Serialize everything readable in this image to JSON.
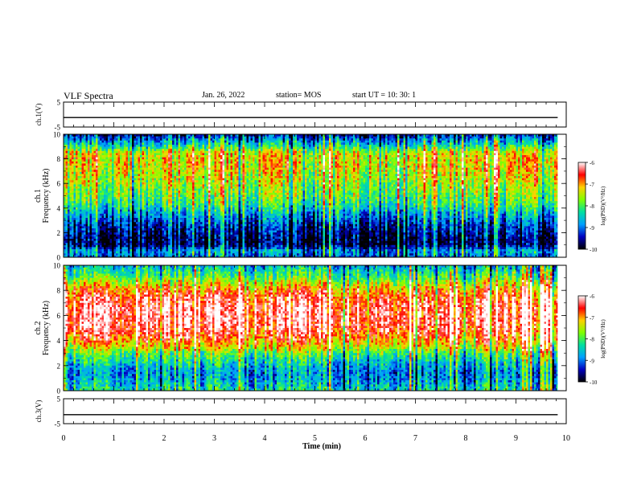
{
  "header": {
    "title": "VLF Spectra",
    "date": "Jan. 26, 2022",
    "station": "station= MOS",
    "start_ut": "start  UT =   10: 30: 1"
  },
  "colorbar": {
    "label": "log(PSD)(V²/Hz)",
    "ticks": [
      "-6",
      "-7",
      "-8",
      "-9",
      "-10"
    ],
    "stops": [
      "#ffffff",
      "#ff0000",
      "#ffd000",
      "#80ff00",
      "#00e0a0",
      "#00a0ff",
      "#0000c0",
      "#000000"
    ]
  },
  "chart_data": [
    {
      "type": "line",
      "panel": "ch1-voltage",
      "ylabel": "ch.1(V)",
      "ylim": [
        -5,
        5
      ],
      "yticks": [
        "5",
        "-5"
      ],
      "x": [
        0,
        1,
        2,
        3,
        4,
        5,
        6,
        7,
        8,
        9,
        9.83
      ],
      "y": [
        -1.2,
        -1.2,
        -1.2,
        -1.2,
        -1.2,
        -1.2,
        -1.2,
        -1.2,
        -1.2,
        -1.2,
        -1.2
      ]
    },
    {
      "type": "heatmap",
      "panel": "ch1-spectrogram",
      "ylabel": "ch.1",
      "ylabel2": "Frequency (kHz)",
      "ylim": [
        0,
        10
      ],
      "yticks": [
        "0",
        "2",
        "4",
        "6",
        "8",
        "10"
      ],
      "xlim": [
        0,
        10
      ],
      "data_end_min": 9.83,
      "z_units": "log(PSD)(V²/Hz)",
      "zlim": [
        -10,
        -6
      ],
      "freq_khz": [
        0.0,
        0.5,
        1.0,
        1.5,
        2.0,
        2.5,
        3.0,
        3.5,
        4.0,
        4.5,
        5.0,
        5.5,
        6.0,
        6.5,
        7.0,
        7.5,
        8.0,
        8.5,
        9.0,
        9.5,
        10.0
      ],
      "mean_log_psd": [
        -9.2,
        -8.8,
        -9.8,
        -9.8,
        -9.6,
        -9.4,
        -9.1,
        -8.8,
        -8.4,
        -8.1,
        -7.9,
        -7.8,
        -7.6,
        -7.5,
        -7.4,
        -7.3,
        -7.3,
        -7.4,
        -8.3,
        -8.9,
        -9.6
      ]
    },
    {
      "type": "heatmap",
      "panel": "ch2-spectrogram",
      "ylabel": "ch.2",
      "ylabel2": "Frequency (kHz)",
      "ylim": [
        0,
        10
      ],
      "yticks": [
        "0",
        "2",
        "4",
        "6",
        "8",
        "10"
      ],
      "xlim": [
        0,
        10
      ],
      "data_end_min": 9.83,
      "z_units": "log(PSD)(V²/Hz)",
      "zlim": [
        -10,
        -6
      ],
      "freq_khz": [
        0.0,
        0.5,
        1.0,
        1.5,
        2.0,
        2.5,
        3.0,
        3.5,
        4.0,
        4.5,
        5.0,
        5.5,
        6.0,
        6.5,
        7.0,
        7.5,
        8.0,
        8.5,
        9.0,
        9.5,
        10.0
      ],
      "mean_log_psd": [
        -8.3,
        -8.6,
        -8.8,
        -8.9,
        -8.6,
        -8.3,
        -7.9,
        -7.3,
        -6.9,
        -6.6,
        -6.4,
        -6.3,
        -6.3,
        -6.3,
        -6.4,
        -6.6,
        -6.9,
        -7.4,
        -7.9,
        -8.3,
        -8.7
      ]
    },
    {
      "type": "line",
      "panel": "ch3-voltage",
      "ylabel": "ch.3(V)",
      "ylim": [
        -5,
        5
      ],
      "yticks": [
        "5",
        "-5"
      ],
      "x": [
        0,
        1,
        2,
        3,
        4,
        5,
        6,
        7,
        8,
        9,
        9.83
      ],
      "y": [
        -1.4,
        -1.4,
        -1.4,
        -1.4,
        -1.4,
        -1.4,
        -1.4,
        -1.4,
        -1.4,
        -1.4,
        -1.4
      ]
    }
  ],
  "x_axis": {
    "xlabel": "Time  (min)",
    "ticks": [
      "0",
      "1",
      "2",
      "3",
      "4",
      "5",
      "6",
      "7",
      "8",
      "9",
      "10"
    ]
  }
}
